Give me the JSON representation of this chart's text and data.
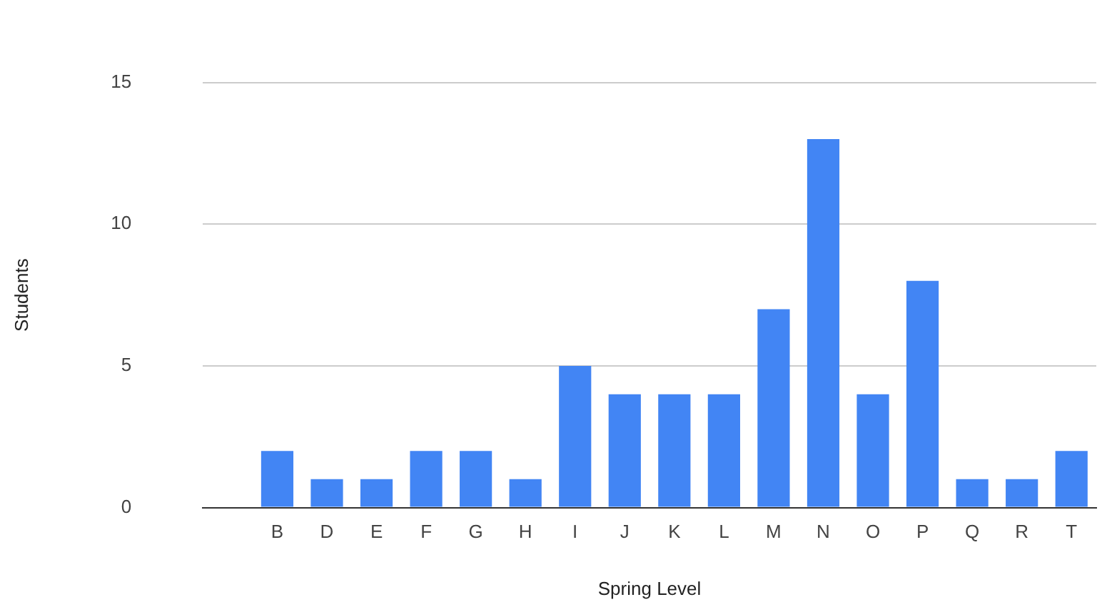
{
  "chart_data": {
    "type": "bar",
    "xlabel": "Spring Level",
    "ylabel": "Students",
    "categories": [
      null,
      "B",
      "D",
      "E",
      "F",
      "G",
      "H",
      "I",
      "J",
      "K",
      "L",
      "M",
      "N",
      "O",
      "P",
      "Q",
      "R",
      "T"
    ],
    "values": [
      null,
      2,
      1,
      1,
      2,
      2,
      1,
      5,
      4,
      4,
      4,
      7,
      13,
      4,
      8,
      1,
      1,
      2
    ],
    "color": "#4285f4",
    "ylim": [
      0,
      15
    ],
    "yticks": [
      0,
      5,
      10,
      15
    ],
    "grid": "y",
    "legend": false
  }
}
